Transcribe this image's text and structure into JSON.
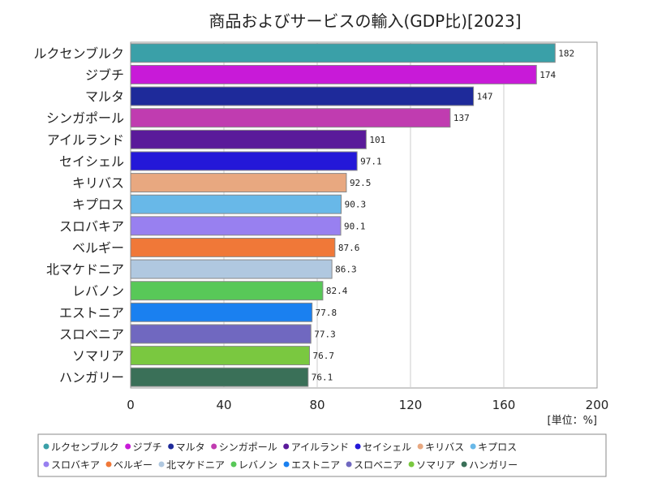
{
  "chart_data": {
    "type": "bar",
    "orientation": "horizontal",
    "title": "商品およびサービスの輸入(GDP比)[2023]",
    "unit": "[単位：%]",
    "xlim": [
      0,
      200
    ],
    "ticks": [
      0,
      40,
      80,
      120,
      160,
      200
    ],
    "categories": [
      "ルクセンブルク",
      "ジブチ",
      "マルタ",
      "シンガポール",
      "アイルランド",
      "セイシェル",
      "キリバス",
      "キプロス",
      "スロバキア",
      "ベルギー",
      "北マケドニア",
      "レバノン",
      "エストニア",
      "スロベニア",
      "ソマリア",
      "ハンガリー"
    ],
    "values": [
      182,
      174,
      147,
      137,
      101,
      97.1,
      92.5,
      90.3,
      90.1,
      87.6,
      86.3,
      82.4,
      77.8,
      77.3,
      76.7,
      76.1
    ],
    "value_labels": [
      "182",
      "174",
      "147",
      "137",
      "101",
      "97.1",
      "92.5",
      "90.3",
      "90.1",
      "87.6",
      "86.3",
      "82.4",
      "77.8",
      "77.3",
      "76.7",
      "76.1"
    ],
    "colors": [
      "#3aa0a8",
      "#c81ad8",
      "#1e2a9a",
      "#c03cb0",
      "#5a1a9a",
      "#2418d8",
      "#e8a880",
      "#68b8e8",
      "#9880f0",
      "#f07838",
      "#b0c8e0",
      "#58c858",
      "#1a80f0",
      "#7068c0",
      "#7ac840",
      "#3a7058"
    ],
    "legend_position": "bottom",
    "grid": true
  }
}
